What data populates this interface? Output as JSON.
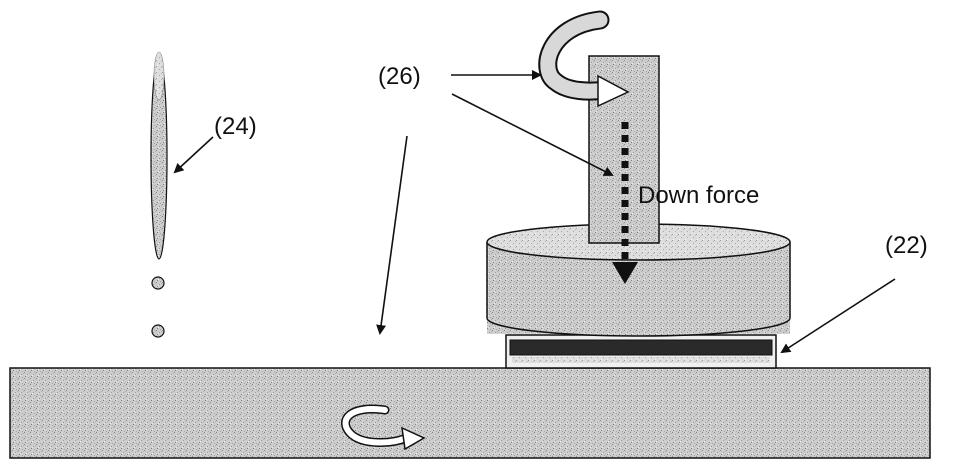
{
  "labels": {
    "ref_26": "(26)",
    "ref_24": "(24)",
    "ref_22": "(22)",
    "down_force": "Down force"
  },
  "colors": {
    "ink": "#111111",
    "stipple_fill": "#c9c9c9",
    "stipple_dot": "#7a7a7a",
    "pad_dark": "#2a2a2a",
    "background": "#ffffff"
  }
}
